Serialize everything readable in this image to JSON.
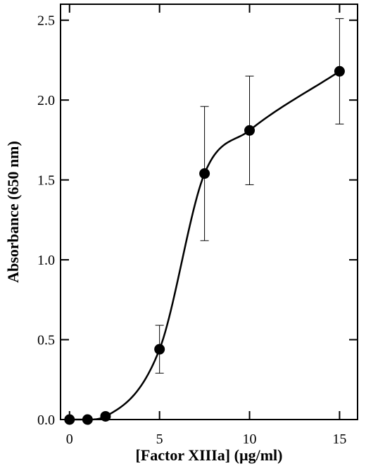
{
  "chart_data": {
    "type": "line",
    "title": "",
    "xlabel": "[Factor XIIIa] (µg/ml)",
    "ylabel": "Absorbance (650 nm)",
    "xlim": [
      -0.5,
      16
    ],
    "ylim": [
      0,
      2.6
    ],
    "x_ticks": [
      0,
      5,
      10,
      15
    ],
    "x_tick_labels": [
      "0",
      "5",
      "10",
      "15"
    ],
    "y_ticks": [
      0,
      0.5,
      1.0,
      1.5,
      2.0,
      2.5
    ],
    "y_tick_labels": [
      "0.0",
      "0.5",
      "1.0",
      "1.5",
      "2.0",
      "2.5"
    ],
    "grid": false,
    "legend": "none",
    "series": [
      {
        "x": [
          0,
          1,
          2,
          5,
          7.5,
          10,
          15
        ],
        "y": [
          0,
          0,
          0.02,
          0.44,
          1.54,
          1.81,
          2.18
        ],
        "error": [
          null,
          null,
          null,
          0.15,
          0.42,
          0.34,
          0.33
        ],
        "marker": "filled-circle",
        "fit_curve": "sigmoidal"
      }
    ],
    "colors": {
      "line": "#000000",
      "marker": "#000000"
    }
  }
}
